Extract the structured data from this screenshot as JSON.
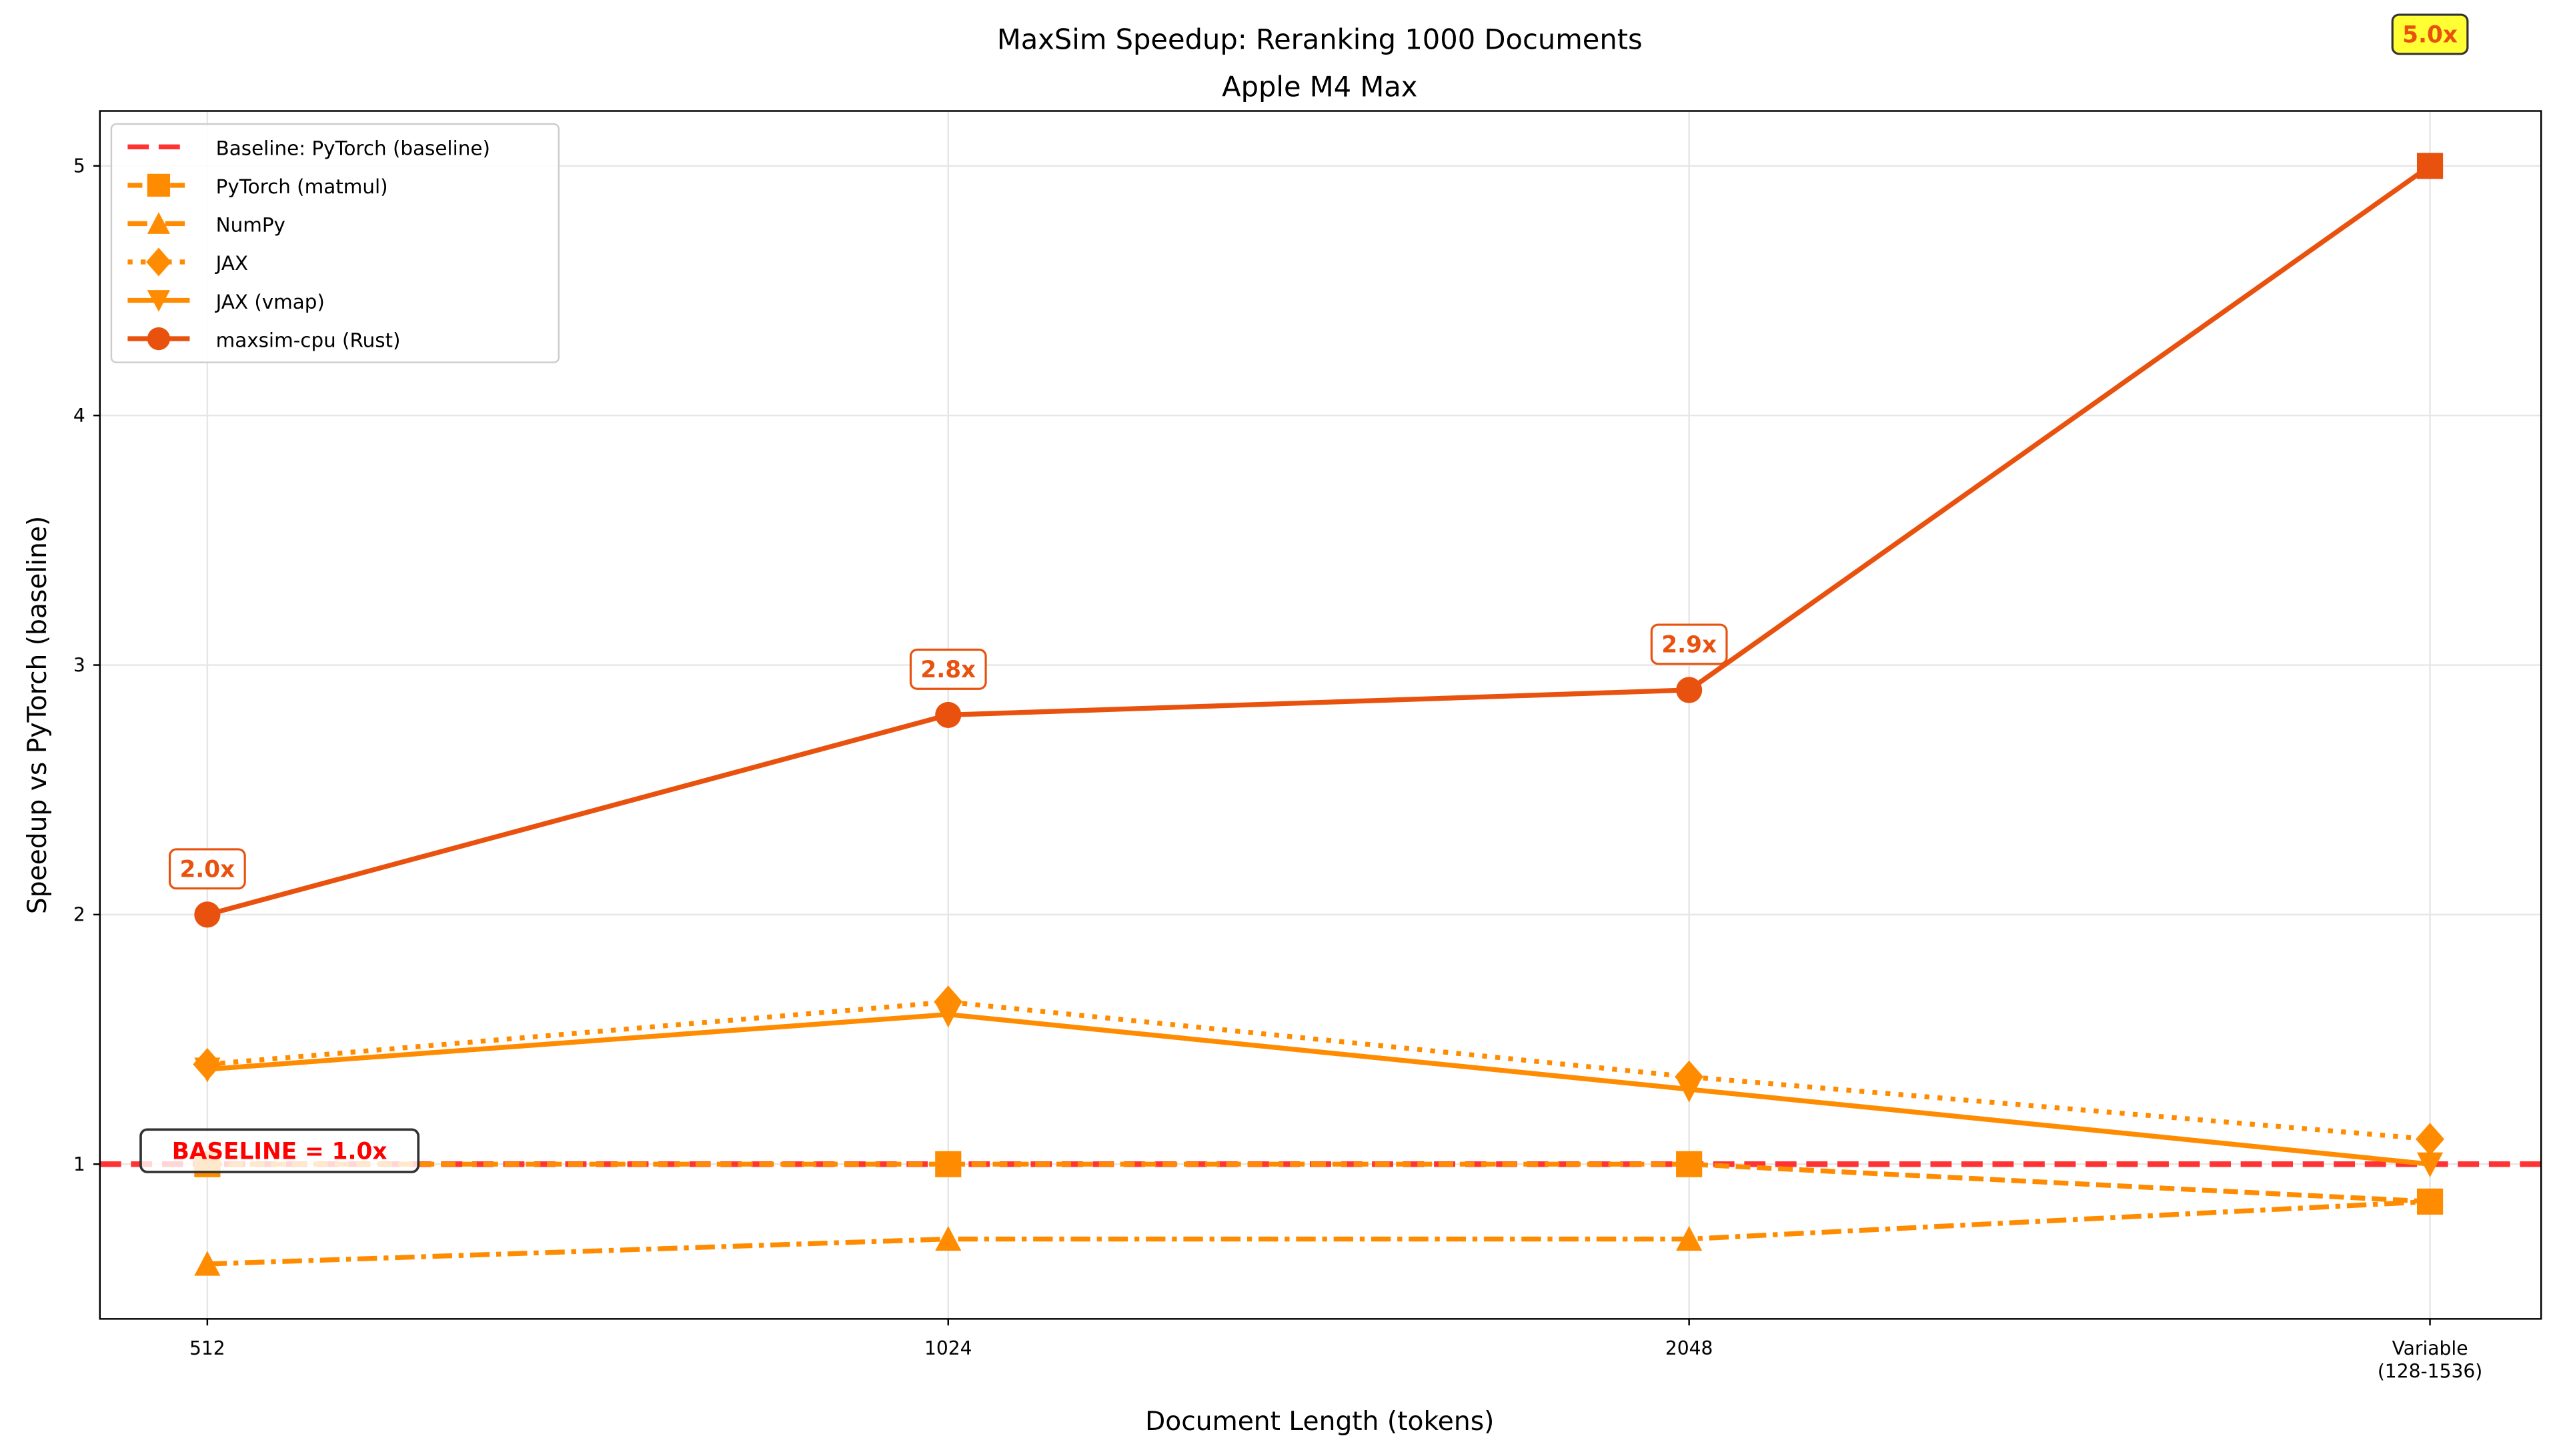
{
  "chart_data": {
    "type": "line",
    "title": "MaxSim Speedup: Reranking 1000 Documents",
    "subtitle": "Apple M4 Max",
    "xlabel": "Document Length (tokens)",
    "ylabel": "Speedup vs PyTorch (baseline)",
    "categories": [
      "512",
      "1024",
      "2048",
      "Variable\n(128-1536)"
    ],
    "ylim": [
      0.38,
      5.22
    ],
    "yticks": [
      1,
      2,
      3,
      4,
      5
    ],
    "grid": true,
    "legend_position": "top-left",
    "baseline": {
      "name": "Baseline: PyTorch (baseline)",
      "value": 1.0,
      "color": "#FF3333",
      "label": "BASELINE = 1.0x"
    },
    "series": [
      {
        "name": "PyTorch (matmul)",
        "values": [
          1.0,
          1.0,
          1.0,
          0.85
        ],
        "color": "#FF8C00",
        "marker": "square",
        "linestyle": "dashed"
      },
      {
        "name": "NumPy",
        "values": [
          0.6,
          0.7,
          0.7,
          0.85
        ],
        "color": "#FF8C00",
        "marker": "triangle-up",
        "linestyle": "dashdot"
      },
      {
        "name": "JAX",
        "values": [
          1.4,
          1.65,
          1.35,
          1.1
        ],
        "color": "#FF8C00",
        "marker": "diamond",
        "linestyle": "dotted"
      },
      {
        "name": "JAX (vmap)",
        "values": [
          1.38,
          1.6,
          1.3,
          1.0
        ],
        "color": "#FF8C00",
        "marker": "triangle-down",
        "linestyle": "solid"
      },
      {
        "name": "maxsim-cpu (Rust)",
        "values": [
          2.0,
          2.8,
          2.9,
          5.0
        ],
        "color": "#E8520E",
        "marker": "circle",
        "linestyle": "solid"
      }
    ],
    "annotations": [
      {
        "label": "2.0x",
        "category": 0,
        "value": 2.0
      },
      {
        "label": "2.8x",
        "category": 1,
        "value": 2.8
      },
      {
        "label": "2.9x",
        "category": 2,
        "value": 2.9
      },
      {
        "label": "5.0x",
        "category": 3,
        "value": 5.0,
        "highlight": "#FFFF33"
      }
    ]
  }
}
